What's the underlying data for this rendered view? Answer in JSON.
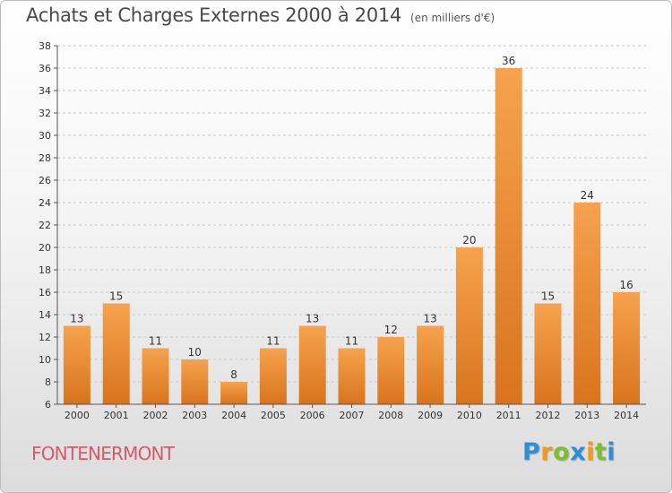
{
  "chart_data": {
    "type": "bar",
    "title": "Achats et Charges Externes 2000 à 2014",
    "unit_label": "(en milliers d'€)",
    "categories": [
      "2000",
      "2001",
      "2002",
      "2003",
      "2004",
      "2005",
      "2006",
      "2007",
      "2008",
      "2009",
      "2010",
      "2011",
      "2012",
      "2013",
      "2014"
    ],
    "values": [
      13,
      15,
      11,
      10,
      8,
      11,
      13,
      11,
      12,
      13,
      20,
      36,
      15,
      24,
      16
    ],
    "ylim": [
      6,
      38
    ],
    "yticks": [
      6,
      8,
      10,
      12,
      14,
      16,
      18,
      20,
      22,
      24,
      26,
      28,
      30,
      32,
      34,
      36,
      38
    ],
    "grid": true,
    "bar_color": "#f0922e"
  },
  "commune": "FONTENERMONT",
  "logo": {
    "letters": [
      "P",
      "r",
      "o",
      "x",
      "i",
      "t",
      "i"
    ],
    "colors": [
      "#2f8fd6",
      "#f39a1e",
      "#7bbf2a",
      "#2f8fd6",
      "#f39a1e",
      "#7bbf2a",
      "#2f8fd6"
    ]
  }
}
